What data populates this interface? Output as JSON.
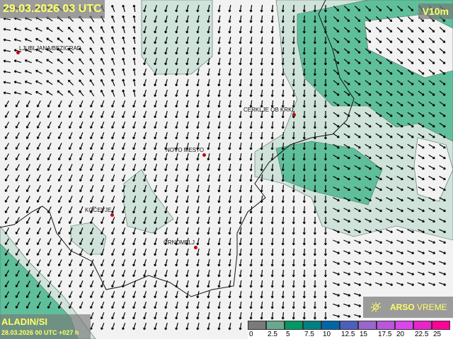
{
  "header": {
    "datetime": "29.03.2026 03 UTC",
    "parameter": "V10m"
  },
  "model": {
    "name": "ALADIN/SI",
    "run": "28.03.2026 00 UTC +027 h"
  },
  "logo": {
    "brand_bold": "ARSO",
    "brand_light": "VREME",
    "icon": "sun-with-slash-icon"
  },
  "cities": [
    {
      "name": "LJUBLJANA/BEZIGRAD"
    },
    {
      "name": "CERKLJE OB KRKI"
    },
    {
      "name": "NOVO MESTO"
    },
    {
      "name": "KOČEVJE"
    },
    {
      "name": "ČRNOMELJ"
    }
  ],
  "legend": {
    "labels": [
      "0",
      "2.5",
      "5",
      "7.5",
      "10",
      "12.5",
      "15",
      "17.5",
      "20",
      "22.5",
      "25"
    ],
    "colors": [
      "#7a7a7a",
      "#6aa88e",
      "#009966",
      "#008080",
      "#0066aa",
      "#4c5fc0",
      "#9966cc",
      "#bb55dd",
      "#dd44ee",
      "#ee22cc",
      "#ff0099"
    ]
  },
  "colors": {
    "shade_light": "#cfe3da",
    "shade_green": "#5fbf9a",
    "title_text": "#ffff66",
    "city_dot": "#c00018"
  }
}
